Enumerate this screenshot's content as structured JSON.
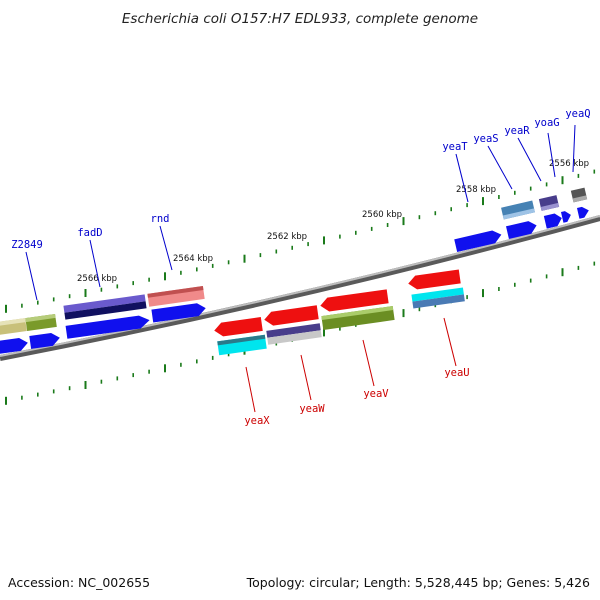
{
  "title": "Escherichia coli O157:H7 EDL933, complete genome",
  "accession": "Accession: NC_002655",
  "topology": "Topology: circular; Length: 5,528,445 bp; Genes: 5,426",
  "scale_labels": [
    {
      "text": "2556 kbp"
    },
    {
      "text": "2558 kbp"
    },
    {
      "text": "2560 kbp"
    },
    {
      "text": "2562 kbp"
    },
    {
      "text": "2564 kbp"
    },
    {
      "text": "2566 kbp"
    }
  ],
  "colors": {
    "forward_label": "#0000cc",
    "reverse_label": "#cc0000",
    "backbone": "#888888",
    "tick": "#1a7a1a"
  },
  "forward_genes": [
    {
      "name": "yeaQ"
    },
    {
      "name": "yoaG"
    },
    {
      "name": "yeaR"
    },
    {
      "name": "yeaS"
    },
    {
      "name": "yeaT"
    },
    {
      "name": "rnd"
    },
    {
      "name": "fadD"
    },
    {
      "name": "Z2849"
    }
  ],
  "reverse_genes": [
    {
      "name": "yeaU"
    },
    {
      "name": "yeaV"
    },
    {
      "name": "yeaW"
    },
    {
      "name": "yeaX"
    }
  ]
}
